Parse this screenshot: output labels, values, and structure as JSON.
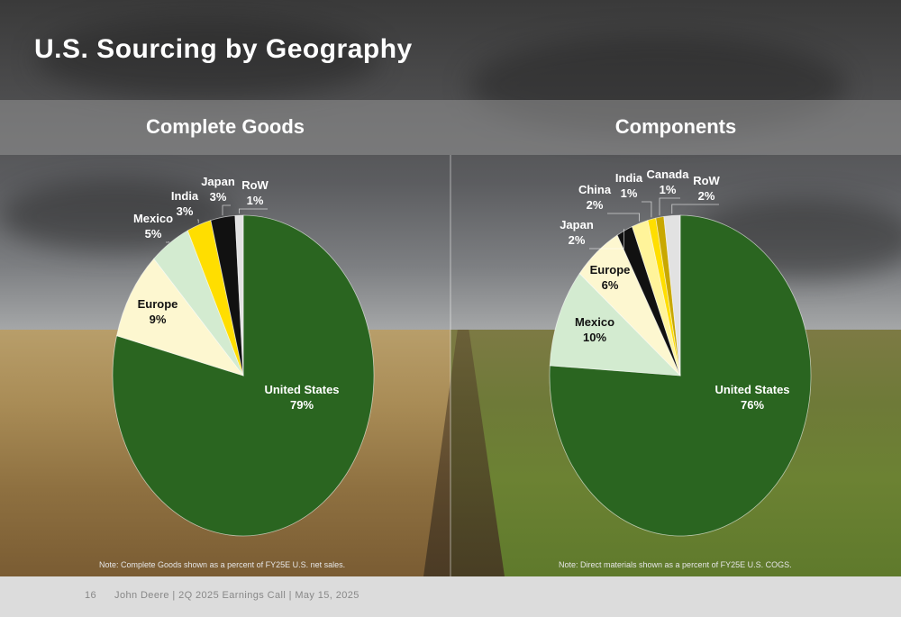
{
  "title": "U.S. Sourcing by Geography",
  "panels": {
    "left_label": "Complete Goods",
    "right_label": "Components"
  },
  "notes": {
    "left": "Note: Complete Goods shown as a percent of FY25E U.S. net sales.",
    "right": "Note: Direct materials shown as a percent of FY25E U.S. COGS."
  },
  "footer": {
    "page_number": "16",
    "text": "John Deere | 2Q 2025 Earnings Call | May 15, 2025"
  },
  "colors": {
    "united_states": "#2a6520",
    "europe": "#fdf7d0",
    "mexico": "#d3ebd0",
    "india": "#ffde00",
    "japan": "#111111",
    "row": "#e2e2e2",
    "china": "#fff49a",
    "canada": "#c9a800"
  },
  "chart_data": [
    {
      "type": "pie",
      "title": "Complete Goods",
      "start": "top, clockwise",
      "slices": [
        {
          "label": "United States",
          "value": 79,
          "display": "79%",
          "color": "#2a6520"
        },
        {
          "label": "Europe",
          "value": 9,
          "display": "9%",
          "color": "#fdf7d0"
        },
        {
          "label": "Mexico",
          "value": 5,
          "display": "5%",
          "color": "#d3ebd0"
        },
        {
          "label": "India",
          "value": 3,
          "display": "3%",
          "color": "#ffde00"
        },
        {
          "label": "Japan",
          "value": 3,
          "display": "3%",
          "color": "#111111"
        },
        {
          "label": "RoW",
          "value": 1,
          "display": "1%",
          "color": "#e2e2e2"
        }
      ]
    },
    {
      "type": "pie",
      "title": "Components",
      "start": "top, clockwise",
      "slices": [
        {
          "label": "United States",
          "value": 76,
          "display": "76%",
          "color": "#2a6520"
        },
        {
          "label": "Mexico",
          "value": 10,
          "display": "10%",
          "color": "#d3ebd0"
        },
        {
          "label": "Europe",
          "value": 6,
          "display": "6%",
          "color": "#fdf7d0"
        },
        {
          "label": "Japan",
          "value": 2,
          "display": "2%",
          "color": "#111111"
        },
        {
          "label": "China",
          "value": 2,
          "display": "2%",
          "color": "#fff49a"
        },
        {
          "label": "India",
          "value": 1,
          "display": "1%",
          "color": "#ffde00"
        },
        {
          "label": "Canada",
          "value": 1,
          "display": "1%",
          "color": "#c9a800"
        },
        {
          "label": "RoW",
          "value": 2,
          "display": "2%",
          "color": "#e2e2e2"
        }
      ]
    }
  ]
}
